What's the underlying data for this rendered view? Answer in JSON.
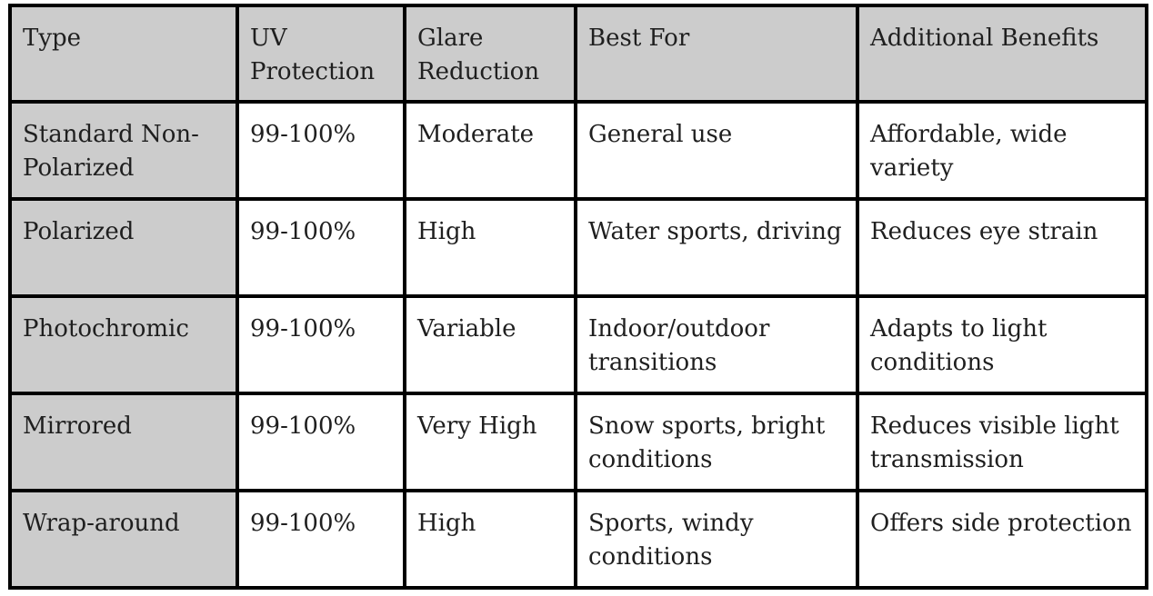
{
  "table": {
    "headers": [
      "Type",
      "UV Protection",
      "Glare Reduction",
      "Best For",
      "Additional Benefits"
    ],
    "rows": [
      [
        "Standard Non-Polarized",
        "99-100%",
        "Moderate",
        "General use",
        "Affordable, wide variety"
      ],
      [
        "Polarized",
        "99-100%",
        "High",
        "Water sports, driving",
        "Reduces eye strain"
      ],
      [
        "Photochromic",
        "99-100%",
        "Variable",
        "Indoor/outdoor transitions",
        "Adapts to light conditions"
      ],
      [
        "Mirrored",
        "99-100%",
        "Very High",
        "Snow sports, bright conditions",
        "Reduces visible light transmission"
      ],
      [
        "Wrap-around",
        "99-100%",
        "High",
        "Sports, windy conditions",
        "Offers side protection"
      ]
    ]
  },
  "colors": {
    "header_fill": "#cccccc",
    "first_column_fill": "#cccccc",
    "border": "#000000",
    "text": "#1f1f1f"
  }
}
